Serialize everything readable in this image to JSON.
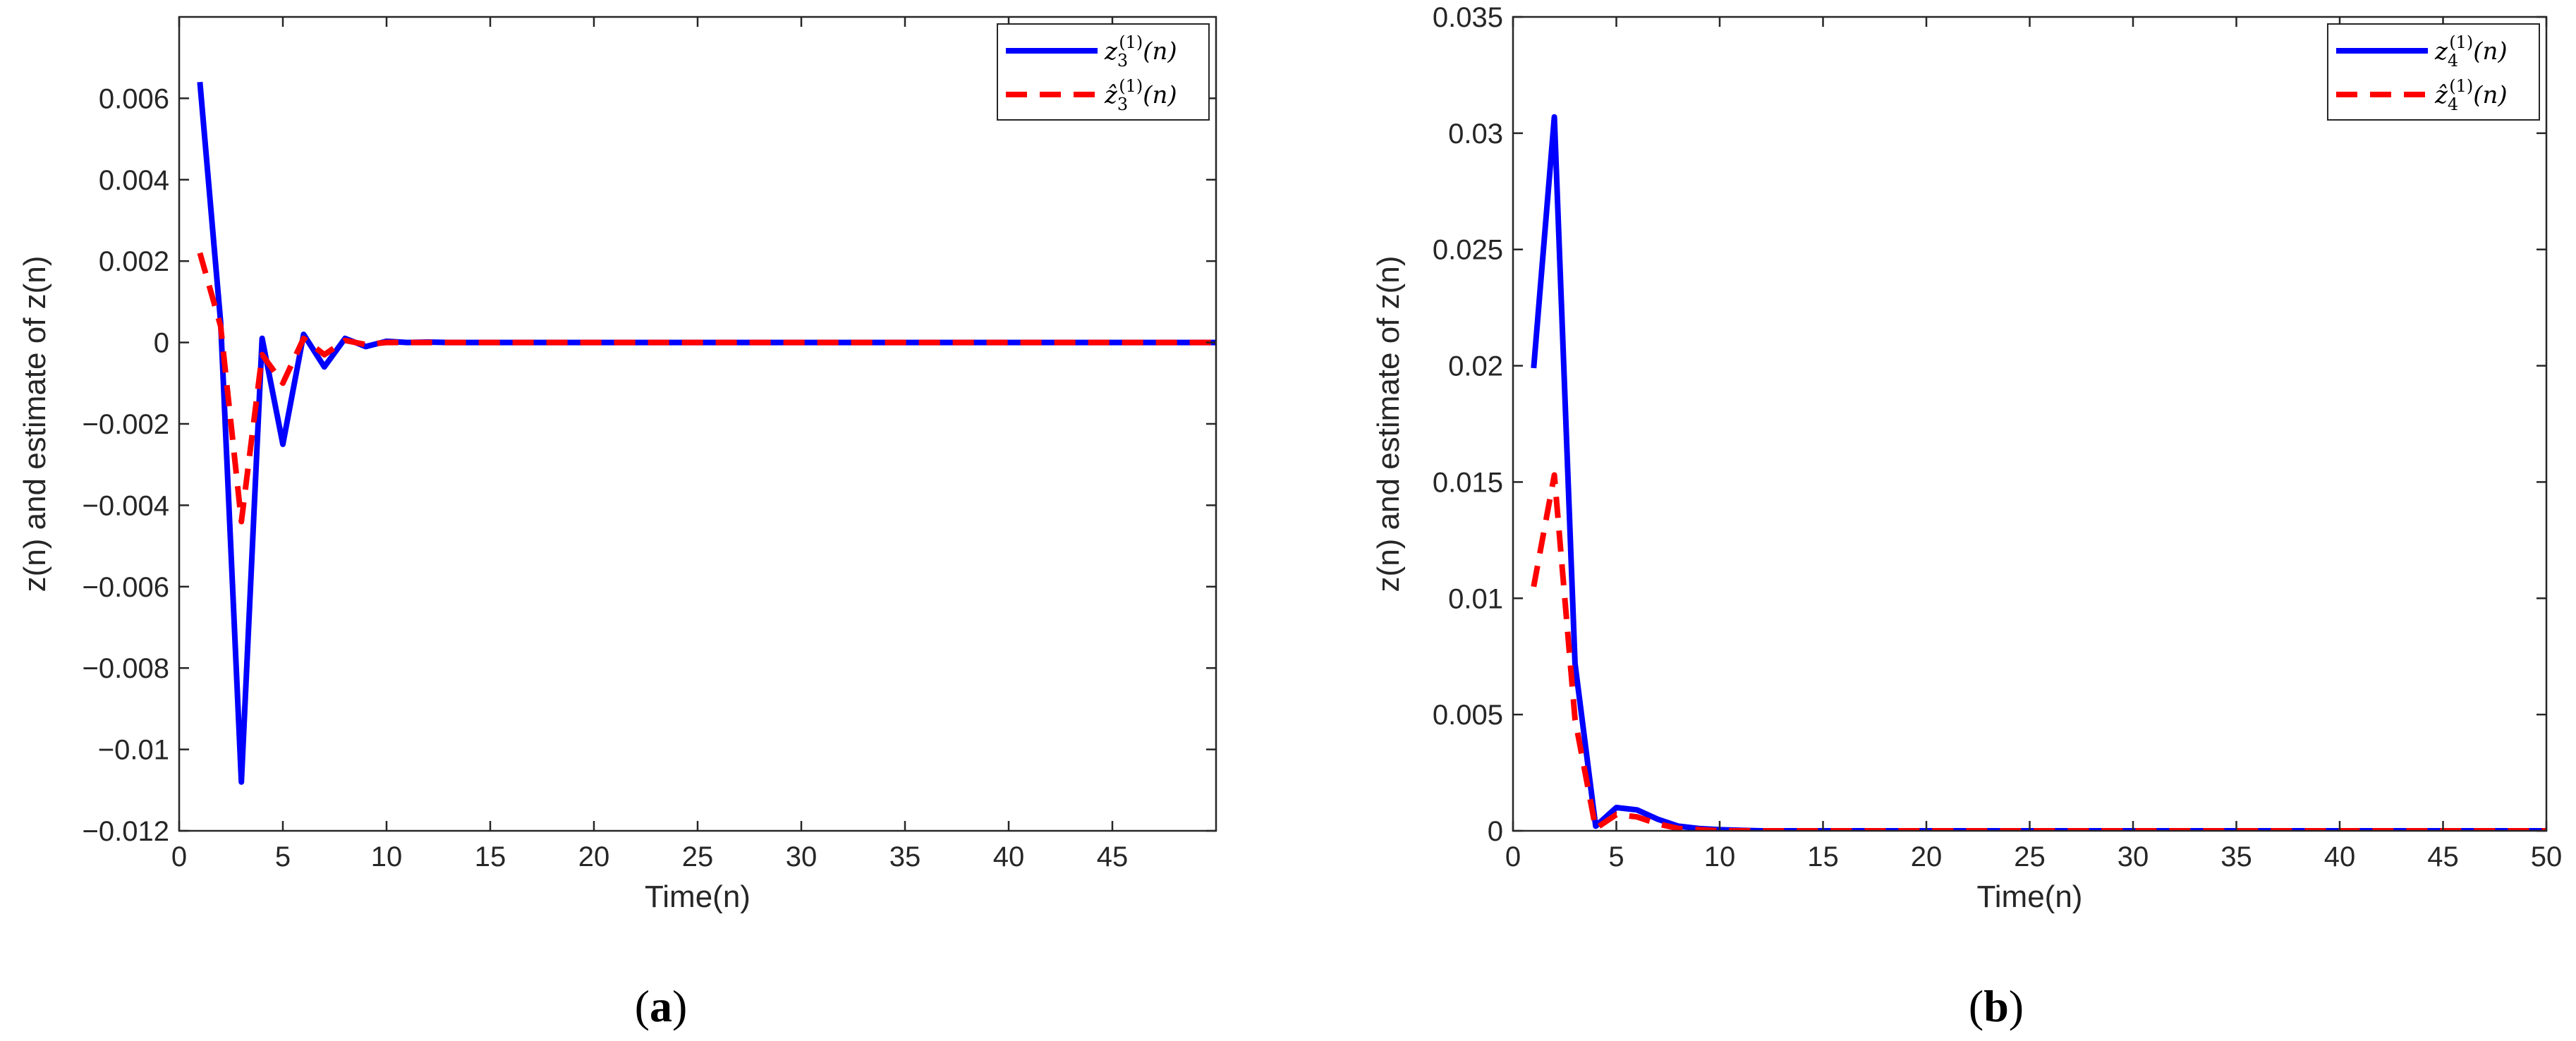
{
  "chart_data": [
    {
      "type": "line",
      "panel_label": "a",
      "xlabel": "Time(n)",
      "ylabel": "z(n) and estimate of z(n)",
      "xlim": [
        0,
        50
      ],
      "ylim": [
        -0.012,
        0.008
      ],
      "xticks": [
        0,
        5,
        10,
        15,
        20,
        25,
        30,
        35,
        40,
        45
      ],
      "yticks": [
        -0.012,
        -0.01,
        -0.008,
        -0.006,
        -0.004,
        -0.002,
        0,
        0.002,
        0.004,
        0.006
      ],
      "ytick_labels": [
        "−0.012",
        "−0.01",
        "−0.008",
        "−0.006",
        "−0.004",
        "−0.002",
        "0",
        "0.002",
        "0.004",
        "0.006"
      ],
      "legend_position": "top-right",
      "series": [
        {
          "name": "z3(1)(n)",
          "legend": {
            "base": "z",
            "sub": "3",
            "sup": "(1)",
            "arg": "(n)"
          },
          "color": "#0000ff",
          "style": "solid",
          "x": [
            1,
            2,
            3,
            4,
            5,
            6,
            7,
            8,
            9,
            10,
            11,
            12,
            13,
            15,
            20,
            30,
            40,
            50
          ],
          "y": [
            0.0064,
            0.0005,
            -0.0108,
            0.0001,
            -0.0025,
            0.0002,
            -0.0006,
            0.0001,
            -0.0001,
            3e-05,
            0.0,
            1e-05,
            0,
            0,
            0,
            0,
            0,
            0
          ]
        },
        {
          "name": "ẑ3(1)(n)",
          "legend": {
            "base": "ẑ",
            "sub": "3",
            "sup": "(1)",
            "arg": "(n)"
          },
          "color": "#ff0000",
          "style": "dashed",
          "x": [
            1,
            2,
            3,
            4,
            5,
            6,
            7,
            8,
            9,
            10,
            11,
            12,
            13,
            15,
            20,
            30,
            40,
            50
          ],
          "y": [
            0.0022,
            0.0004,
            -0.0044,
            -0.0003,
            -0.001,
            0.0001,
            -0.0003,
            5e-05,
            -5e-05,
            0,
            0,
            0,
            0,
            0,
            0,
            0,
            0,
            0
          ]
        }
      ]
    },
    {
      "type": "line",
      "panel_label": "b",
      "xlabel": "Time(n)",
      "ylabel": "z(n) and estimate of z(n)",
      "xlim": [
        0,
        50
      ],
      "ylim": [
        0,
        0.035
      ],
      "xticks": [
        0,
        5,
        10,
        15,
        20,
        25,
        30,
        35,
        40,
        45,
        50
      ],
      "yticks": [
        0,
        0.005,
        0.01,
        0.015,
        0.02,
        0.025,
        0.03,
        0.035
      ],
      "ytick_labels": [
        "0",
        "0.005",
        "0.01",
        "0.015",
        "0.02",
        "0.025",
        "0.03",
        "0.035"
      ],
      "legend_position": "top-right",
      "series": [
        {
          "name": "z4(1)(n)",
          "legend": {
            "base": "z",
            "sub": "4",
            "sup": "(1)",
            "arg": "(n)"
          },
          "color": "#0000ff",
          "style": "solid",
          "x": [
            1,
            2,
            3,
            4,
            5,
            6,
            7,
            8,
            9,
            10,
            11,
            12,
            13,
            15,
            20,
            30,
            40,
            50
          ],
          "y": [
            0.0199,
            0.0307,
            0.0072,
            0.0002,
            0.001,
            0.0009,
            0.0005,
            0.0002,
            0.0001,
            5e-05,
            2e-05,
            0,
            0,
            0,
            0,
            0,
            0,
            0
          ]
        },
        {
          "name": "ẑ4(1)(n)",
          "legend": {
            "base": "ẑ",
            "sub": "4",
            "sup": "(1)",
            "arg": "(n)"
          },
          "color": "#ff0000",
          "style": "dashed",
          "x": [
            1,
            2,
            3,
            4,
            5,
            6,
            7,
            8,
            9,
            10,
            11,
            12,
            13,
            15,
            20,
            30,
            40,
            50
          ],
          "y": [
            0.0105,
            0.0153,
            0.0048,
            0.0001,
            0.0007,
            0.0006,
            0.0003,
            0.0001,
            5e-05,
            0,
            0,
            0,
            0,
            0,
            0,
            0,
            0,
            0
          ]
        }
      ]
    }
  ]
}
